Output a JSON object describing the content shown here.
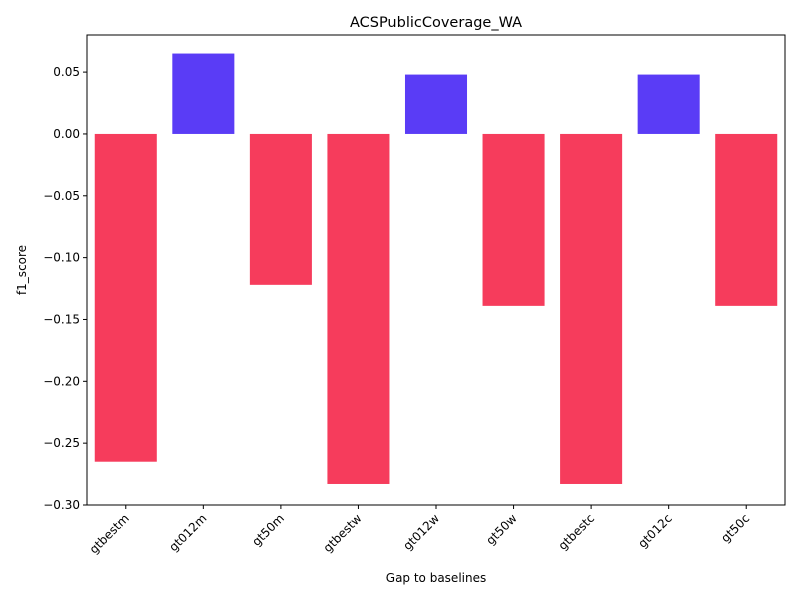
{
  "chart_data": {
    "type": "bar",
    "title": "ACSPublicCoverage_WA",
    "xlabel": "Gap to baselines",
    "ylabel": "f1_score",
    "categories": [
      "gtbestm",
      "gt012m",
      "gt50m",
      "gtbestw",
      "gt012w",
      "gt50w",
      "gtbestc",
      "gt012c",
      "gt50c"
    ],
    "values": [
      -0.265,
      0.065,
      -0.122,
      -0.283,
      0.048,
      -0.139,
      -0.283,
      0.048,
      -0.139
    ],
    "ylim": [
      -0.3,
      0.08
    ],
    "yticks": [
      -0.3,
      -0.25,
      -0.2,
      -0.15,
      -0.1,
      -0.05,
      0.0,
      0.05
    ],
    "ytick_labels": [
      "−0.30",
      "−0.25",
      "−0.20",
      "−0.15",
      "−0.10",
      "−0.05",
      "0.00",
      "0.05"
    ],
    "colors": {
      "positive": "#5a3cf6",
      "negative": "#f63c5c"
    },
    "grid": false,
    "legend": "none"
  }
}
